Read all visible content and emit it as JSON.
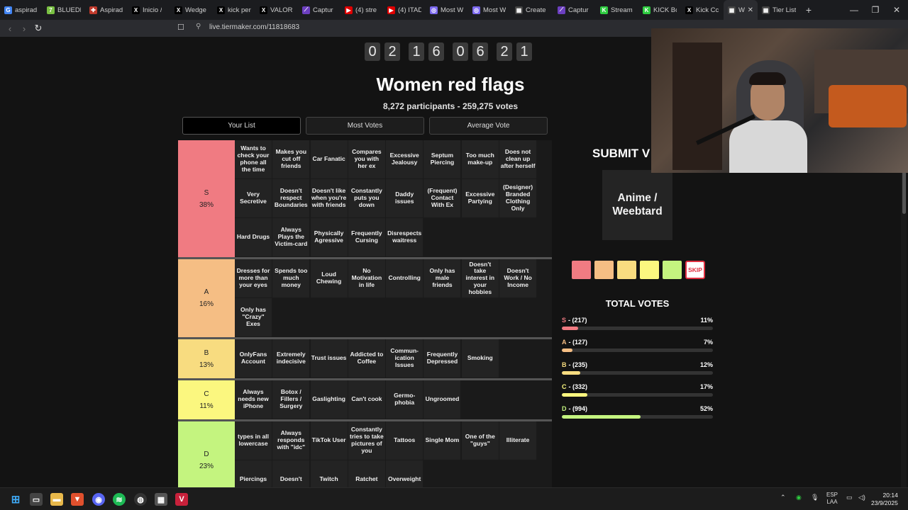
{
  "browser": {
    "tabs": [
      {
        "label": "aspirad",
        "color": "#4285f4",
        "glyph": "G"
      },
      {
        "label": "BLUEDR",
        "color": "#7ac143",
        "glyph": "7"
      },
      {
        "label": "Aspirad",
        "color": "#c0392b",
        "glyph": "✚"
      },
      {
        "label": "Inicio /",
        "color": "#000000",
        "glyph": "X"
      },
      {
        "label": "Wedge",
        "color": "#000000",
        "glyph": "X"
      },
      {
        "label": "kick per",
        "color": "#000000",
        "glyph": "X"
      },
      {
        "label": "VALOR",
        "color": "#000000",
        "glyph": "X"
      },
      {
        "label": "Captur",
        "color": "#6c3fc0",
        "glyph": "⟋"
      },
      {
        "label": "(4) stre",
        "color": "#e00000",
        "glyph": "▶"
      },
      {
        "label": "(4) ITAD",
        "color": "#e00000",
        "glyph": "▶"
      },
      {
        "label": "Most W",
        "color": "#7b68ee",
        "glyph": "◎"
      },
      {
        "label": "Most W",
        "color": "#7b68ee",
        "glyph": "◎"
      },
      {
        "label": "Create",
        "color": "#444444",
        "glyph": "▦"
      },
      {
        "label": "Captur",
        "color": "#6c3fc0",
        "glyph": "⟋"
      },
      {
        "label": "Stream",
        "color": "#2ecc40",
        "glyph": "K"
      },
      {
        "label": "KICK Bc",
        "color": "#2ecc40",
        "glyph": "K"
      },
      {
        "label": "Kick Cc",
        "color": "#000000",
        "glyph": "X"
      }
    ],
    "active_tab": {
      "label": "We",
      "color": "#444444",
      "glyph": "▦"
    },
    "last_tab": {
      "label": "Tier List",
      "color": "#444444",
      "glyph": "▦"
    },
    "url": "live.tiermaker.com/11818683"
  },
  "page": {
    "counter_digits": [
      "0",
      "2",
      "1",
      "6",
      "0",
      "6",
      "2",
      "1"
    ],
    "title": "Women red flags",
    "subtitle": "8,272 participants - 259,275 votes",
    "view_tabs": [
      "Your List",
      "Most Votes",
      "Average Vote"
    ]
  },
  "tiers": [
    {
      "letter": "S",
      "percent": "38%",
      "color": "#f07b82",
      "items": [
        "Wants to check your phone all the time",
        "Makes you cut off friends",
        "Car Fanatic",
        "Compares you with her ex",
        "Excessive Jealousy",
        "Septum Piercing",
        "Too much make-up",
        "Does not clean up after herself",
        "Very Secretive",
        "Doesn't respect Boundaries",
        "Doesn't like when you're with friends",
        "Constantly puts you down",
        "Daddy issues",
        "(Frequent) Contact With Ex",
        "Excessive Partying",
        "(Designer) Branded Clothing Only",
        "Hard Drugs",
        "Always Plays the Victim-card",
        "Physically Agressive",
        "Frequently Cursing",
        "Disrespects waitress"
      ]
    },
    {
      "letter": "A",
      "percent": "16%",
      "color": "#f5be84",
      "items": [
        "Dresses for more than your eyes",
        "Spends too much money",
        "Loud Chewing",
        "No Motivation in life",
        "Controlling",
        "Only has male friends",
        "Doesn't take interest in your hobbies",
        "Doesn't Work / No Income",
        "Only has \"Crazy\" Exes"
      ]
    },
    {
      "letter": "B",
      "percent": "13%",
      "color": "#f8dc80",
      "items": [
        "OnlyFans Account",
        "Extremely indecisive",
        "Trust issues",
        "Addicted to Coffee",
        "Commun- ication Issues",
        "Frequently Depressed",
        "Smoking"
      ]
    },
    {
      "letter": "C",
      "percent": "11%",
      "color": "#fbf77f",
      "items": [
        "Always needs new iPhone",
        "Botox / Fillers / Surgery",
        "Gaslighting",
        "Can't cook",
        "Germo- phobia",
        "Ungroomed"
      ]
    },
    {
      "letter": "D",
      "percent": "23%",
      "color": "#c4f47f",
      "items": [
        "types in all lowercase",
        "Always responds with \"idc\"",
        "TikTok User",
        "Constantly tries to take pictures of you",
        "Tattoos",
        "Single Mom",
        "One of the \"guys\"",
        "Illiterate",
        "Piercings",
        "Doesn't",
        "Twitch",
        "Ratchet",
        "Overweight"
      ]
    }
  ],
  "vote_panel": {
    "submit_label": "SUBMIT V",
    "current_item": "Anime / Weebtard",
    "skip_label": "SKIP",
    "totals_title": "TOTAL VOTES",
    "totals": [
      {
        "letter": "S",
        "count": "- (217)",
        "percent": "11%",
        "fraction": 0.11,
        "color": "#f07b82"
      },
      {
        "letter": "A",
        "count": "- (127)",
        "percent": "7%",
        "fraction": 0.07,
        "color": "#f5be84"
      },
      {
        "letter": "B",
        "count": "- (235)",
        "percent": "12%",
        "fraction": 0.12,
        "color": "#f8dc80"
      },
      {
        "letter": "C",
        "count": "- (332)",
        "percent": "17%",
        "fraction": 0.17,
        "color": "#fbf77f"
      },
      {
        "letter": "D",
        "count": "- (994)",
        "percent": "52%",
        "fraction": 0.52,
        "color": "#c4f47f"
      }
    ]
  },
  "taskbar": {
    "lang_top": "ESP",
    "lang_bottom": "LAA",
    "time": "20:14",
    "date": "23/9/2025"
  }
}
